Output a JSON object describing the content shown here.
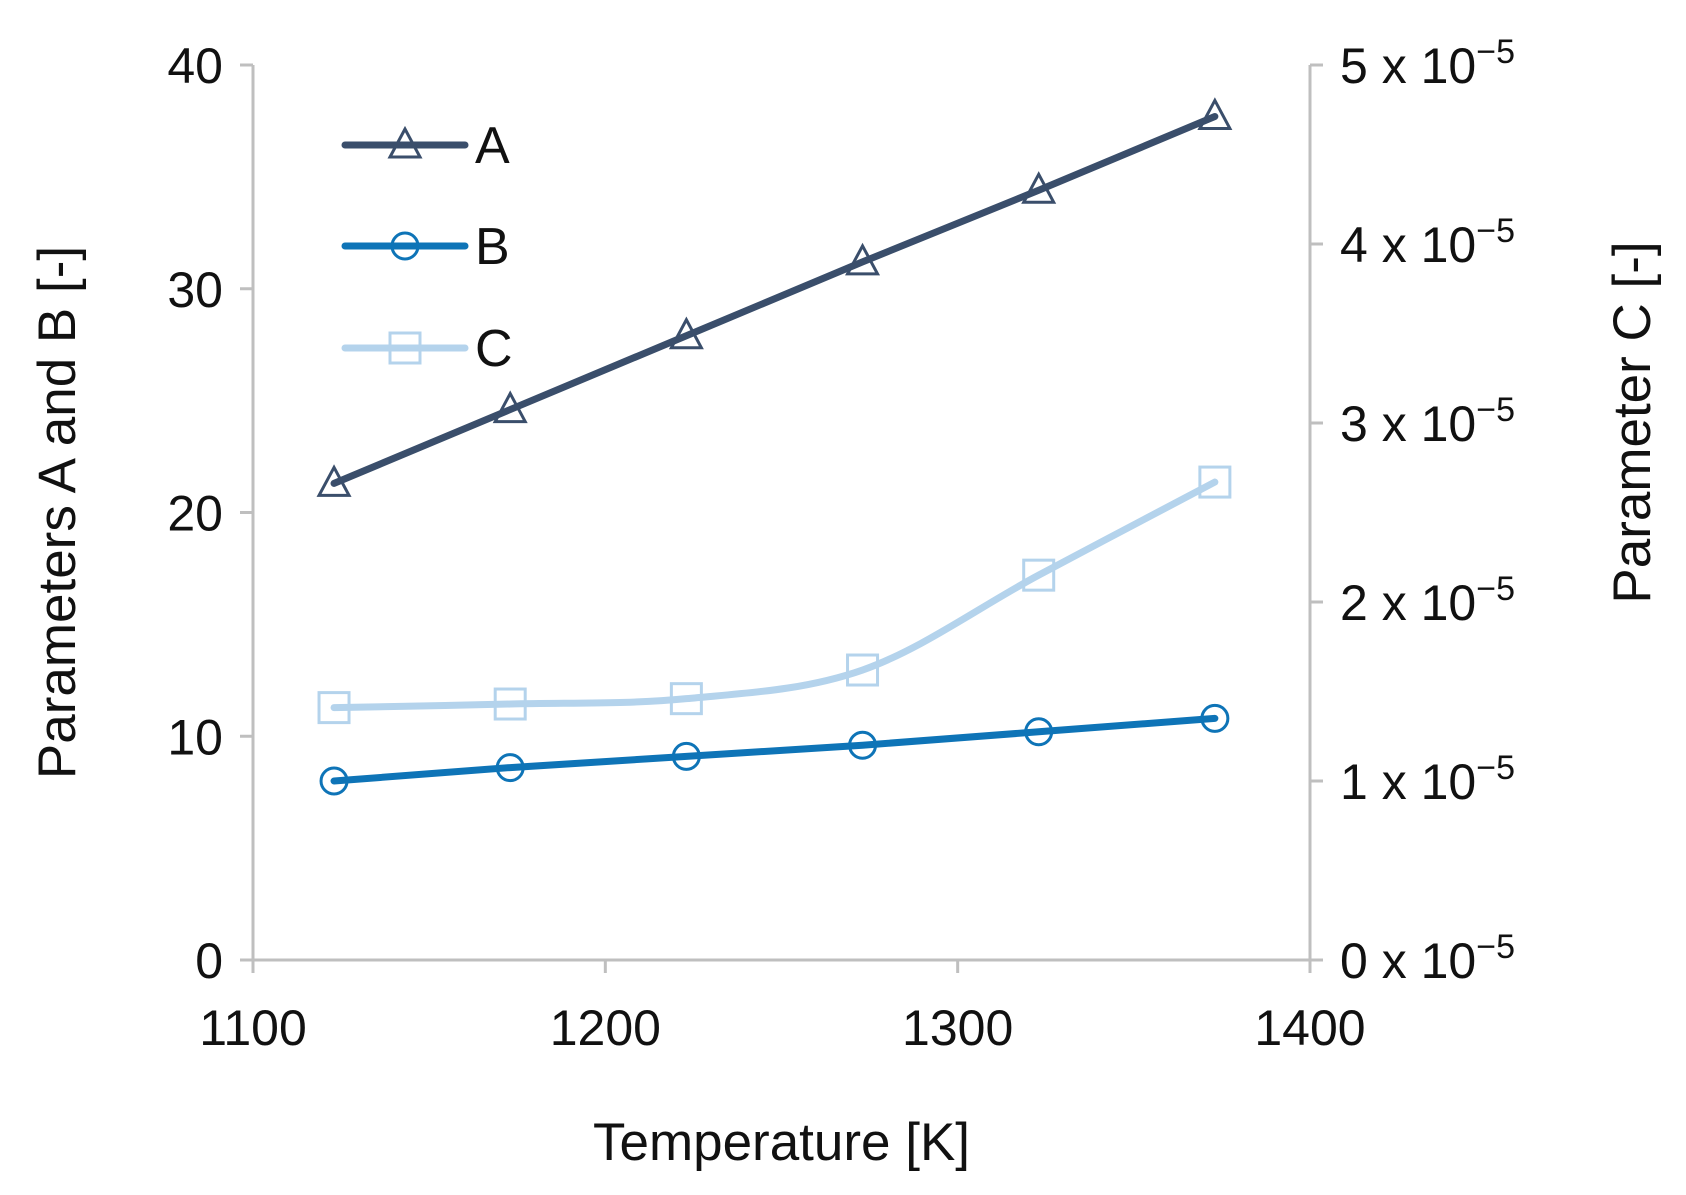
{
  "chart_data": {
    "type": "line",
    "title": "",
    "xlabel": "Temperature [K]",
    "ylabel_left": "Parameters A and B [-]",
    "ylabel_right": "Parameter C [-]",
    "xlim": [
      1100,
      1400
    ],
    "ylim_left": [
      0,
      40
    ],
    "ylim_right_mantissa": [
      0,
      5
    ],
    "x_ticks": [
      "1100",
      "1200",
      "1300",
      "1400"
    ],
    "y_left_ticks": [
      "0",
      "10",
      "20",
      "30",
      "40"
    ],
    "y_right_ticks": [
      {
        "mantissa": "0",
        "times": "x 10",
        "exponent": "−5"
      },
      {
        "mantissa": "1",
        "times": "x 10",
        "exponent": "−5"
      },
      {
        "mantissa": "2",
        "times": "x 10",
        "exponent": "−5"
      },
      {
        "mantissa": "3",
        "times": "x 10",
        "exponent": "−5"
      },
      {
        "mantissa": "4",
        "times": "x 10",
        "exponent": "−5"
      },
      {
        "mantissa": "5",
        "times": "x 10",
        "exponent": "−5"
      }
    ],
    "x": [
      1123,
      1173,
      1223,
      1273,
      1323,
      1373
    ],
    "series": [
      {
        "name": "A",
        "axis": "left",
        "marker": "triangle",
        "color": "#3a4e6b",
        "values": [
          21.3,
          24.6,
          27.9,
          31.2,
          34.4,
          37.7
        ]
      },
      {
        "name": "B",
        "axis": "left",
        "marker": "circle",
        "color": "#0e74b7",
        "values": [
          8.0,
          8.6,
          9.1,
          9.6,
          10.2,
          10.8
        ]
      },
      {
        "name": "C",
        "axis": "right",
        "unit": "x 10^-5",
        "marker": "square",
        "color": "#b4d3ec",
        "values": [
          1.41,
          1.43,
          1.46,
          1.62,
          2.15,
          2.67
        ]
      }
    ],
    "legend_position": "top-left",
    "grid": false
  }
}
